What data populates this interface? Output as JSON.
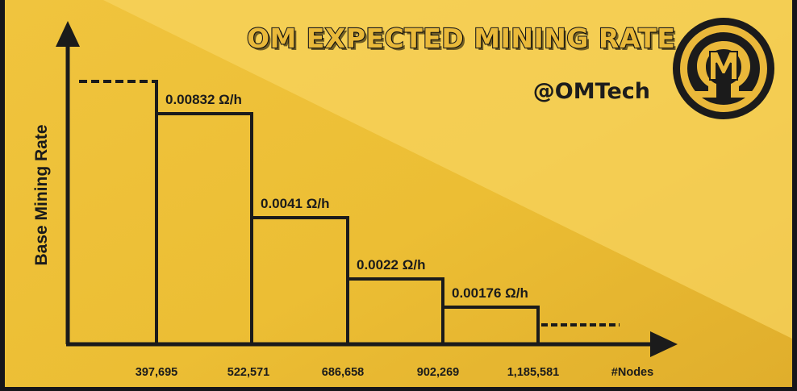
{
  "chart_data": {
    "type": "line",
    "title": "OM EXPECTED MINING RATE",
    "subtitle": "@OMTech",
    "ylabel": "Base Mining Rate",
    "xlabel": "#Nodes",
    "x_ticks": [
      "397,695",
      "522,571",
      "686,658",
      "902,269",
      "1,185,581"
    ],
    "series": [
      {
        "values": [
          null,
          0.00832,
          0.0041,
          0.0022,
          0.00176,
          null
        ],
        "labels": [
          "",
          "0.00832 Ω/h",
          "0.0041 Ω/h",
          "0.0022 Ω/h",
          "0.00176 Ω/h",
          ""
        ]
      }
    ],
    "grid": false,
    "legend": "none"
  }
}
